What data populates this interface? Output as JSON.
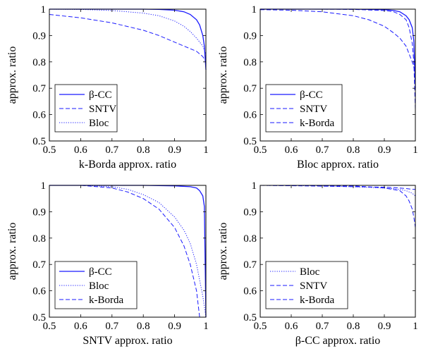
{
  "chart_data": [
    {
      "type": "line",
      "xlabel": "k-Borda approx. ratio",
      "ylabel": "approx. ratio",
      "xlim": [
        0.5,
        1
      ],
      "ylim": [
        0.5,
        1
      ],
      "xticks": [
        "0.5",
        "0.6",
        "0.7",
        "0.8",
        "0.9",
        "1"
      ],
      "yticks": [
        "0.5",
        "0.6",
        "0.7",
        "0.8",
        "0.9",
        "1"
      ],
      "legend_position": "bottom-left",
      "series": [
        {
          "name": "β-CC",
          "style": "solid",
          "x": [
            0.5,
            0.6,
            0.7,
            0.8,
            0.85,
            0.9,
            0.93,
            0.95,
            0.97,
            0.98,
            0.99,
            0.995,
            1.0
          ],
          "y": [
            1.0,
            1.0,
            1.0,
            1.0,
            0.999,
            0.996,
            0.99,
            0.98,
            0.96,
            0.94,
            0.9,
            0.86,
            0.77
          ]
        },
        {
          "name": "SNTV",
          "style": "dashed",
          "x": [
            0.5,
            0.6,
            0.7,
            0.8,
            0.85,
            0.9,
            0.93,
            0.95,
            0.97,
            0.99,
            1.0
          ],
          "y": [
            0.98,
            0.967,
            0.948,
            0.92,
            0.9,
            0.875,
            0.86,
            0.85,
            0.84,
            0.82,
            0.8
          ]
        },
        {
          "name": "Bloc",
          "style": "dotted",
          "x": [
            0.5,
            0.6,
            0.7,
            0.8,
            0.85,
            0.9,
            0.93,
            0.95,
            0.97,
            0.99,
            1.0
          ],
          "y": [
            1.0,
            0.999,
            0.995,
            0.985,
            0.975,
            0.955,
            0.935,
            0.915,
            0.89,
            0.86,
            0.83
          ]
        }
      ]
    },
    {
      "type": "line",
      "xlabel": "Bloc approx. ratio",
      "ylabel": "approx. ratio",
      "xlim": [
        0.5,
        1
      ],
      "ylim": [
        0.5,
        1
      ],
      "xticks": [
        "0.5",
        "0.6",
        "0.7",
        "0.8",
        "0.9",
        "1"
      ],
      "yticks": [
        "0.5",
        "0.6",
        "0.7",
        "0.8",
        "0.9",
        "1"
      ],
      "legend_position": "bottom-left",
      "series": [
        {
          "name": "β-CC",
          "style": "solid",
          "x": [
            0.5,
            0.7,
            0.8,
            0.9,
            0.93,
            0.95,
            0.97,
            0.98,
            0.99,
            0.995,
            1.0
          ],
          "y": [
            1.0,
            1.0,
            1.0,
            0.998,
            0.995,
            0.99,
            0.975,
            0.96,
            0.93,
            0.88,
            0.7
          ]
        },
        {
          "name": "SNTV",
          "style": "dashed",
          "x": [
            0.5,
            0.6,
            0.7,
            0.8,
            0.85,
            0.9,
            0.93,
            0.95,
            0.97,
            0.99,
            1.0
          ],
          "y": [
            0.998,
            0.996,
            0.99,
            0.975,
            0.96,
            0.935,
            0.91,
            0.89,
            0.86,
            0.8,
            0.76
          ]
        },
        {
          "name": "k-Borda",
          "style": "dashed",
          "x": [
            0.5,
            0.7,
            0.8,
            0.9,
            0.93,
            0.95,
            0.97,
            0.98,
            0.99,
            0.995,
            1.0
          ],
          "y": [
            1.0,
            1.0,
            0.999,
            0.995,
            0.99,
            0.98,
            0.96,
            0.93,
            0.87,
            0.8,
            0.62
          ]
        }
      ]
    },
    {
      "type": "line",
      "xlabel": "SNTV approx. ratio",
      "ylabel": "approx. ratio",
      "xlim": [
        0.5,
        1
      ],
      "ylim": [
        0.5,
        1
      ],
      "xticks": [
        "0.5",
        "0.6",
        "0.7",
        "0.8",
        "0.9",
        "1"
      ],
      "yticks": [
        "0.5",
        "0.6",
        "0.7",
        "0.8",
        "0.9",
        "1"
      ],
      "legend_position": "bottom-left",
      "series": [
        {
          "name": "β-CC",
          "style": "solid",
          "x": [
            0.5,
            0.7,
            0.8,
            0.9,
            0.95,
            0.97,
            0.98,
            0.99,
            0.995,
            1.0
          ],
          "y": [
            1.0,
            1.0,
            1.0,
            0.998,
            0.995,
            0.99,
            0.98,
            0.96,
            0.92,
            0.5
          ]
        },
        {
          "name": "Bloc",
          "style": "dotted",
          "x": [
            0.5,
            0.6,
            0.7,
            0.75,
            0.8,
            0.85,
            0.9,
            0.93,
            0.95,
            0.97,
            0.99,
            1.0
          ],
          "y": [
            1.0,
            1.0,
            0.995,
            0.985,
            0.965,
            0.935,
            0.88,
            0.83,
            0.78,
            0.7,
            0.58,
            0.5
          ]
        },
        {
          "name": "k-Borda",
          "style": "dashed",
          "x": [
            0.5,
            0.6,
            0.7,
            0.75,
            0.8,
            0.85,
            0.9,
            0.93,
            0.95,
            0.97,
            0.98
          ],
          "y": [
            1.0,
            1.0,
            0.99,
            0.975,
            0.95,
            0.91,
            0.84,
            0.77,
            0.7,
            0.6,
            0.5
          ]
        }
      ]
    },
    {
      "type": "line",
      "xlabel": "β-CC approx. ratio",
      "ylabel": "approx. ratio",
      "xlim": [
        0.5,
        1
      ],
      "ylim": [
        0.5,
        1
      ],
      "xticks": [
        "0.5",
        "0.6",
        "0.7",
        "0.8",
        "0.9",
        "1"
      ],
      "yticks": [
        "0.5",
        "0.6",
        "0.7",
        "0.8",
        "0.9",
        "1"
      ],
      "legend_position": "bottom-left",
      "series": [
        {
          "name": "Bloc",
          "style": "dotted",
          "x": [
            0.5,
            0.7,
            0.8,
            0.9,
            0.95,
            0.97,
            0.99,
            1.0
          ],
          "y": [
            1.0,
            0.998,
            0.995,
            0.99,
            0.985,
            0.98,
            0.97,
            0.96
          ]
        },
        {
          "name": "SNTV",
          "style": "dashed",
          "x": [
            0.5,
            0.7,
            0.8,
            0.9,
            0.95,
            0.97,
            0.99,
            1.0
          ],
          "y": [
            1.0,
            0.997,
            0.995,
            0.993,
            0.99,
            0.988,
            0.985,
            0.985
          ]
        },
        {
          "name": "k-Borda",
          "style": "dashed",
          "x": [
            0.5,
            0.7,
            0.8,
            0.9,
            0.95,
            0.97,
            0.98,
            0.99,
            0.995,
            1.0
          ],
          "y": [
            1.0,
            0.999,
            0.998,
            0.99,
            0.98,
            0.96,
            0.94,
            0.91,
            0.88,
            0.84
          ]
        }
      ]
    }
  ],
  "colors": {
    "line": "#1a1aff"
  }
}
